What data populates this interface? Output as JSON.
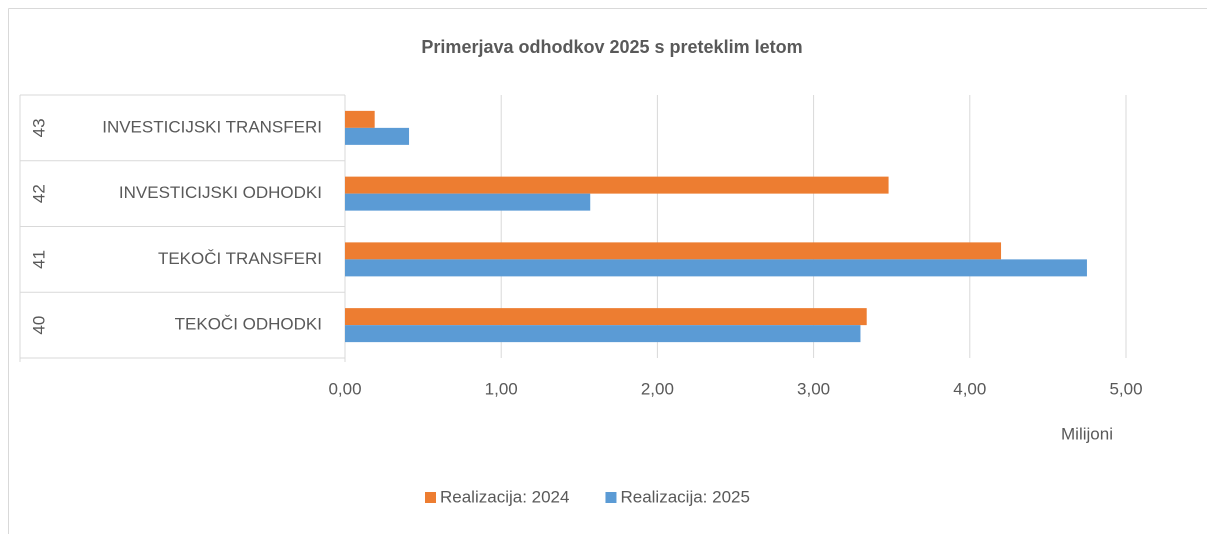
{
  "chart_data": {
    "type": "barh",
    "title": "Primerjava odhodkov 2025 s preteklim letom",
    "category_groups": [
      "40",
      "41",
      "42",
      "43"
    ],
    "categories": [
      "TEKOČI ODHODKI",
      "TEKOČI TRANSFERI",
      "INVESTICIJSKI ODHODKI",
      "INVESTICIJSKI TRANSFERI"
    ],
    "series": [
      {
        "name": "Realizacija: 2024",
        "color": "#ED7D31",
        "values": [
          3.34,
          4.2,
          3.48,
          0.19
        ]
      },
      {
        "name": "Realizacija: 2025",
        "color": "#5B9BD5",
        "values": [
          3.3,
          4.75,
          1.57,
          0.41
        ]
      }
    ],
    "xlim": [
      0,
      5
    ],
    "xticks": [
      {
        "value": 0,
        "label": "0,00"
      },
      {
        "value": 1,
        "label": "1,00"
      },
      {
        "value": 2,
        "label": "2,00"
      },
      {
        "value": 3,
        "label": "3,00"
      },
      {
        "value": 4,
        "label": "4,00"
      },
      {
        "value": 5,
        "label": "5,00"
      }
    ],
    "x_unit_label": "Milijoni",
    "grid": true,
    "legend": "bottom"
  }
}
